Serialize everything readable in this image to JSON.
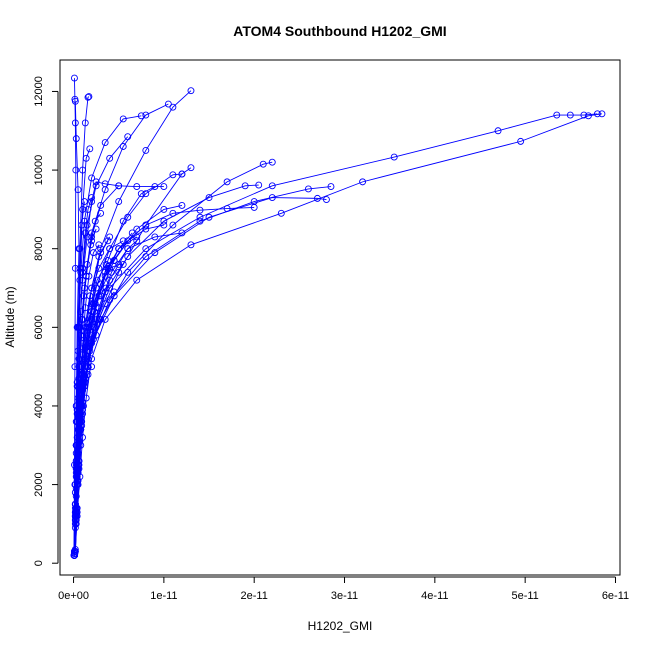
{
  "chart_data": {
    "type": "line",
    "title": "ATOM4 Southbound H1202_GMI",
    "xlabel": "H1202_GMI",
    "ylabel": "Altitude (m)",
    "xlim": [
      -1.5e-12,
      6.05e-11
    ],
    "ylim": [
      -300,
      12800
    ],
    "x_ticks": [
      0,
      1e-11,
      2e-11,
      3e-11,
      4e-11,
      5e-11,
      6e-11
    ],
    "x_tick_labels": [
      "0e+00",
      "1e-11",
      "2e-11",
      "3e-11",
      "4e-11",
      "5e-11",
      "6e-11"
    ],
    "y_ticks": [
      0,
      2000,
      4000,
      6000,
      8000,
      10000,
      12000
    ],
    "y_tick_labels": [
      "0",
      "2000",
      "4000",
      "6000",
      "8000",
      "10000",
      "12000"
    ],
    "grid": false,
    "legend": "none",
    "series_color": "#0000ff",
    "marker": "open-circle",
    "series": [
      {
        "x": [
          1e-13,
          3e-13,
          5e-13,
          8e-13,
          1.1e-12,
          1.5e-12,
          2.3e-12,
          4e-12,
          8e-12,
          1.4e-11,
          2.2e-11,
          3.55e-11,
          4.7e-11,
          5.35e-11,
          5.5e-11,
          5.65e-11,
          5.8e-11
        ],
        "y": [
          200,
          1000,
          2000,
          3000,
          4000,
          5000,
          6000,
          7000,
          8000,
          8800,
          9600,
          10330,
          11000,
          11400,
          11400,
          11400,
          11430
        ]
      },
      {
        "x": [
          2e-13,
          4e-13,
          7e-13,
          1e-12,
          1.4e-12,
          2e-12,
          3.5e-12,
          7e-12,
          1.3e-11,
          2.3e-11,
          3.2e-11,
          4.95e-11,
          5.7e-11,
          5.85e-11
        ],
        "y": [
          300,
          1200,
          2200,
          3200,
          4200,
          5200,
          6200,
          7200,
          8100,
          8900,
          9700,
          10730,
          11380,
          11430
        ]
      },
      {
        "x": [
          1.5e-13,
          3e-13,
          5e-13,
          8e-13,
          1.2e-12,
          2e-12,
          4e-12,
          8e-12,
          1.4e-11,
          2e-11,
          2.6e-11,
          2.85e-11
        ],
        "y": [
          250,
          1200,
          2300,
          3400,
          4500,
          5600,
          6700,
          7800,
          8700,
          9200,
          9520,
          9580
        ]
      },
      {
        "x": [
          2e-13,
          4e-13,
          6e-13,
          9e-13,
          1.3e-12,
          2.2e-12,
          4.5e-12,
          9e-12,
          1.5e-11,
          2.2e-11,
          2.7e-11,
          2.8e-11
        ],
        "y": [
          300,
          1300,
          2400,
          3500,
          4600,
          5700,
          6800,
          7900,
          8800,
          9300,
          9280,
          9250
        ]
      },
      {
        "x": [
          1e-13,
          3e-13,
          5e-13,
          7e-13,
          1e-12,
          1.6e-12,
          3e-12,
          6e-12,
          1.1e-11,
          1.7e-11,
          2.1e-11,
          2.2e-11
        ],
        "y": [
          200,
          1100,
          2100,
          3100,
          4100,
          5100,
          6200,
          7400,
          8600,
          9700,
          10150,
          10200
        ]
      },
      {
        "x": [
          2e-13,
          4e-13,
          6e-13,
          9e-13,
          1.3e-12,
          2e-12,
          3.5e-12,
          6e-12,
          1e-11,
          1.5e-11,
          1.9e-11,
          2.05e-11
        ],
        "y": [
          350,
          1400,
          2500,
          3600,
          4700,
          5800,
          6900,
          7800,
          8700,
          9300,
          9600,
          9620
        ]
      },
      {
        "x": [
          1e-13,
          2e-13,
          4e-13,
          6e-13,
          9e-13,
          1.5e-12,
          2.8e-12,
          5e-12,
          8e-12,
          1.2e-11,
          1.3e-11
        ],
        "y": [
          200,
          1000,
          2000,
          3000,
          4000,
          5000,
          6200,
          7400,
          8600,
          9900,
          10060
        ]
      },
      {
        "x": [
          1e-13,
          3e-13,
          5e-13,
          8e-13,
          1.2e-12,
          2e-12,
          3e-12,
          5e-12,
          8e-12,
          1.1e-11,
          1.3e-11
        ],
        "y": [
          200,
          1300,
          2500,
          3800,
          5200,
          6600,
          8000,
          9200,
          10500,
          11600,
          12020
        ]
      },
      {
        "x": [
          1e-13,
          2e-13,
          3e-13,
          5e-13,
          8e-13,
          1.2e-12,
          2e-12,
          3.5e-12,
          5.5e-12,
          8e-12,
          1.05e-11
        ],
        "y": [
          200,
          1400,
          2800,
          4200,
          5600,
          7000,
          8400,
          9500,
          10600,
          11400,
          11680
        ]
      },
      {
        "x": [
          1e-13,
          2e-13,
          3e-13,
          5e-13,
          7e-13,
          1e-12,
          1.5e-12,
          2.5e-12,
          4e-12,
          6e-12
        ],
        "y": [
          200,
          1500,
          3000,
          4500,
          6000,
          7400,
          8600,
          9600,
          10300,
          10850
        ]
      },
      {
        "x": [
          1e-13,
          2e-13,
          3e-13,
          4e-13,
          6e-13,
          8e-13,
          1.2e-12,
          2e-12,
          3.5e-12,
          5.5e-12,
          7.5e-12
        ],
        "y": [
          200,
          1500,
          3000,
          4600,
          6000,
          7400,
          8700,
          9800,
          10700,
          11300,
          11380
        ]
      },
      {
        "x": [
          1e-13,
          2e-13,
          3e-13,
          4e-13,
          6e-13,
          9e-13,
          1.4e-12,
          2e-12,
          3e-12,
          5e-12,
          7e-12,
          1e-11
        ],
        "y": [
          200,
          1200,
          2500,
          3800,
          5000,
          6200,
          7300,
          8300,
          9100,
          9600,
          9580,
          9580
        ]
      },
      {
        "x": [
          1e-13,
          2e-13,
          4e-13,
          6e-13,
          1e-12,
          1.6e-12,
          2.5e-12,
          4e-12,
          6e-12,
          8e-12,
          1.1e-11,
          1.2e-11
        ],
        "y": [
          200,
          1200,
          2400,
          3600,
          4800,
          6000,
          7000,
          8000,
          8800,
          9400,
          9880,
          9900
        ]
      },
      {
        "x": [
          1e-13,
          2e-13,
          3e-13,
          5e-13,
          7e-13,
          1e-12,
          1.4e-12,
          1.8e-12
        ],
        "y": [
          200,
          1800,
          3600,
          5400,
          7200,
          9000,
          10300,
          10540
        ]
      },
      {
        "x": [
          1e-13,
          2e-13,
          3e-13,
          5e-13,
          7e-13,
          1e-12,
          1.3e-12,
          1.6e-12,
          1.7e-12
        ],
        "y": [
          200,
          2000,
          4000,
          6000,
          8000,
          10000,
          11200,
          11850,
          11870
        ]
      },
      {
        "x": [
          5e-14,
          1e-13,
          1.5e-13,
          2e-13,
          2.5e-13,
          2e-13,
          1.5e-13,
          1e-13
        ],
        "y": [
          200,
          2500,
          5000,
          7500,
          10000,
          11200,
          11800,
          12340
        ]
      },
      {
        "x": [
          5e-14,
          1.5e-13,
          3e-13,
          4e-13,
          6e-13,
          5e-13,
          3e-13,
          2e-13
        ],
        "y": [
          200,
          2000,
          4000,
          6000,
          8000,
          9500,
          10800,
          11750
        ]
      },
      {
        "x": [
          1e-13,
          3e-13,
          5e-13,
          8e-13,
          1.2e-12,
          1.8e-12,
          3e-12,
          5e-12,
          8e-12,
          1.1e-11,
          1.4e-11,
          1.7e-11,
          2e-11
        ],
        "y": [
          250,
          1300,
          2400,
          3600,
          4800,
          6000,
          7100,
          8000,
          8600,
          8900,
          8980,
          9020,
          9050
        ]
      },
      {
        "x": [
          1e-13,
          2e-13,
          4e-13,
          7e-13,
          1.1e-12,
          1.7e-12,
          2.8e-12,
          4.5e-12,
          7e-12,
          1e-11,
          1.2e-11
        ],
        "y": [
          250,
          1200,
          2300,
          3400,
          4600,
          5700,
          6800,
          7700,
          8500,
          9000,
          9100
        ]
      },
      {
        "x": [
          1e-13,
          3e-13,
          6e-13,
          1e-12,
          1.6e-12,
          2.6e-12,
          4e-12,
          6e-12,
          9e-12,
          1.2e-11
        ],
        "y": [
          300,
          1400,
          2600,
          3800,
          5000,
          6200,
          7200,
          8000,
          8300,
          8400
        ]
      },
      {
        "x": [
          1e-13,
          2e-13,
          4e-13,
          7e-13,
          1e-12,
          1.5e-12,
          2.4e-12,
          3.8e-12,
          6e-12,
          8e-12,
          1e-11
        ],
        "y": [
          200,
          1100,
          2200,
          3300,
          4400,
          5500,
          6600,
          7500,
          8200,
          8500,
          8600
        ]
      },
      {
        "x": [
          1e-13,
          2e-13,
          4e-13,
          6e-13,
          9e-13,
          1.4e-12,
          2.2e-12,
          3.5e-12,
          5e-12,
          7e-12
        ],
        "y": [
          200,
          1200,
          2400,
          3500,
          4600,
          5600,
          6600,
          7400,
          8000,
          8300
        ]
      },
      {
        "x": [
          1e-13,
          2e-13,
          3e-13,
          5e-13,
          8e-13,
          1.2e-12,
          1.8e-12,
          2.8e-12,
          4e-12,
          5.5e-12
        ],
        "y": [
          200,
          1300,
          2500,
          3700,
          4800,
          5900,
          6800,
          7500,
          8000,
          8200
        ]
      },
      {
        "x": [
          1e-13,
          3e-13,
          5e-13,
          8e-13,
          1.2e-12,
          1.8e-12,
          2.6e-12,
          3.6e-12,
          4.5e-12
        ],
        "y": [
          200,
          1400,
          2700,
          4000,
          5200,
          6300,
          7200,
          7600,
          7700
        ]
      },
      {
        "x": [
          1e-13,
          2e-13,
          4e-13,
          6e-13,
          9e-13,
          1.3e-12,
          2e-12,
          3e-12,
          4e-12,
          5e-12,
          5.5e-12
        ],
        "y": [
          200,
          1200,
          2300,
          3400,
          4500,
          5500,
          6400,
          7100,
          7500,
          7600,
          7600
        ]
      },
      {
        "x": [
          1e-13,
          2e-13,
          3e-13,
          5e-13,
          7e-13,
          1e-12,
          1.5e-12,
          2.2e-12,
          3e-12
        ],
        "y": [
          300,
          1300,
          2400,
          3400,
          4400,
          5300,
          6100,
          6600,
          6800
        ]
      },
      {
        "x": [
          1e-13,
          2e-13,
          3e-13,
          5e-13,
          8e-13,
          1.2e-12,
          1.8e-12,
          2.6e-12,
          3.5e-12,
          4.5e-12
        ],
        "y": [
          200,
          1000,
          1900,
          2800,
          3700,
          4600,
          5400,
          6100,
          6600,
          6900
        ]
      },
      {
        "x": [
          1e-13,
          2e-13,
          3e-13,
          4e-13,
          6e-13,
          9e-13,
          1.3e-12,
          1.8e-12,
          2.5e-12
        ],
        "y": [
          300,
          1200,
          2200,
          3200,
          4100,
          4800,
          5300,
          5600,
          5800
        ]
      },
      {
        "x": [
          1e-13,
          2e-13,
          3e-13,
          5e-13,
          7e-13,
          9e-13,
          1.2e-12,
          1.6e-12,
          2e-12
        ],
        "y": [
          200,
          900,
          1700,
          2500,
          3300,
          4000,
          4500,
          4800,
          5000
        ]
      },
      {
        "x": [
          1e-13,
          3e-13,
          6e-13,
          1e-12,
          1.6e-12,
          2.5e-12,
          3.8e-12,
          5.5e-12,
          7.5e-12,
          9e-12
        ],
        "y": [
          200,
          1300,
          2600,
          3900,
          5200,
          6500,
          7700,
          8700,
          9400,
          9580
        ]
      },
      {
        "x": [
          1e-13,
          3e-13,
          5e-13,
          8e-13,
          1.2e-12,
          1.8e-12,
          2.8e-12,
          4.2e-12,
          6e-12,
          7e-12
        ],
        "y": [
          200,
          1200,
          2300,
          3400,
          4500,
          5500,
          6500,
          7400,
          8000,
          8200
        ]
      },
      {
        "x": [
          1e-13,
          2e-13,
          4e-13,
          7e-13,
          1e-12,
          1.5e-12,
          2.3e-12,
          3.5e-12,
          5e-12,
          6.5e-12
        ],
        "y": [
          200,
          1100,
          2200,
          3300,
          4400,
          5400,
          6400,
          7300,
          8000,
          8400
        ]
      },
      {
        "x": [
          1e-13,
          2e-13,
          3e-13,
          5e-13,
          7e-13,
          1e-12,
          1.5e-12,
          2e-12,
          2.5e-12,
          3.5e-12,
          5e-12
        ],
        "y": [
          200,
          1500,
          3000,
          4500,
          6000,
          7200,
          8300,
          9200,
          9700,
          9650,
          9600
        ]
      },
      {
        "x": [
          1e-13,
          2e-13,
          4e-13,
          6e-13,
          9e-13,
          1.3e-12,
          2e-12,
          3e-12,
          4e-12
        ],
        "y": [
          200,
          1200,
          2400,
          3600,
          4800,
          6000,
          7000,
          7900,
          8300
        ]
      },
      {
        "x": [
          1e-13,
          2e-13,
          3e-13,
          4e-13,
          6e-13,
          8e-13,
          1.1e-12,
          1.5e-12,
          2e-12,
          2.5e-12
        ],
        "y": [
          200,
          1200,
          2400,
          3600,
          4700,
          5800,
          6800,
          7600,
          8200,
          8500
        ]
      },
      {
        "x": [
          1e-13,
          2e-13,
          3e-13,
          5e-13,
          7e-13,
          1e-12,
          1.4e-12,
          1.9e-12,
          2.4e-12,
          3e-12
        ],
        "y": [
          200,
          1300,
          2600,
          3800,
          5000,
          6200,
          7300,
          8100,
          8700,
          8900
        ]
      },
      {
        "x": [
          1e-13,
          2e-13,
          3e-13,
          4e-13,
          5e-13,
          7e-13,
          9e-13,
          1.2e-12
        ],
        "y": [
          200,
          1500,
          3000,
          4500,
          6000,
          7500,
          8600,
          9200
        ]
      },
      {
        "x": [
          1e-13,
          2e-13,
          4e-13,
          6e-13,
          8e-13,
          1.1e-12,
          1.5e-12,
          2e-12,
          2.8e-12,
          3.8e-12
        ],
        "y": [
          200,
          1100,
          2100,
          3100,
          4100,
          5100,
          6100,
          7000,
          7800,
          8200
        ]
      },
      {
        "x": [
          1e-13,
          3e-13,
          5e-13,
          7e-13,
          1e-12,
          1.4e-12,
          2e-12,
          2.8e-12,
          3.6e-12
        ],
        "y": [
          200,
          1300,
          2500,
          3600,
          4600,
          5500,
          6200,
          6800,
          7000
        ]
      },
      {
        "x": [
          1e-13,
          2e-13,
          3e-13,
          5e-13,
          7e-13,
          1e-12,
          1.3e-12,
          1.7e-12,
          2.2e-12,
          2.8e-12
        ],
        "y": [
          200,
          1200,
          2300,
          3400,
          4500,
          5500,
          6500,
          7300,
          7900,
          8100
        ]
      },
      {
        "x": [
          1e-13,
          2e-13,
          3e-13,
          4e-13,
          6e-13,
          8e-13,
          1e-12,
          1.3e-12,
          1.6e-12,
          2e-12
        ],
        "y": [
          200,
          1300,
          2600,
          3900,
          5200,
          6400,
          7500,
          8400,
          9000,
          9300
        ]
      }
    ]
  }
}
